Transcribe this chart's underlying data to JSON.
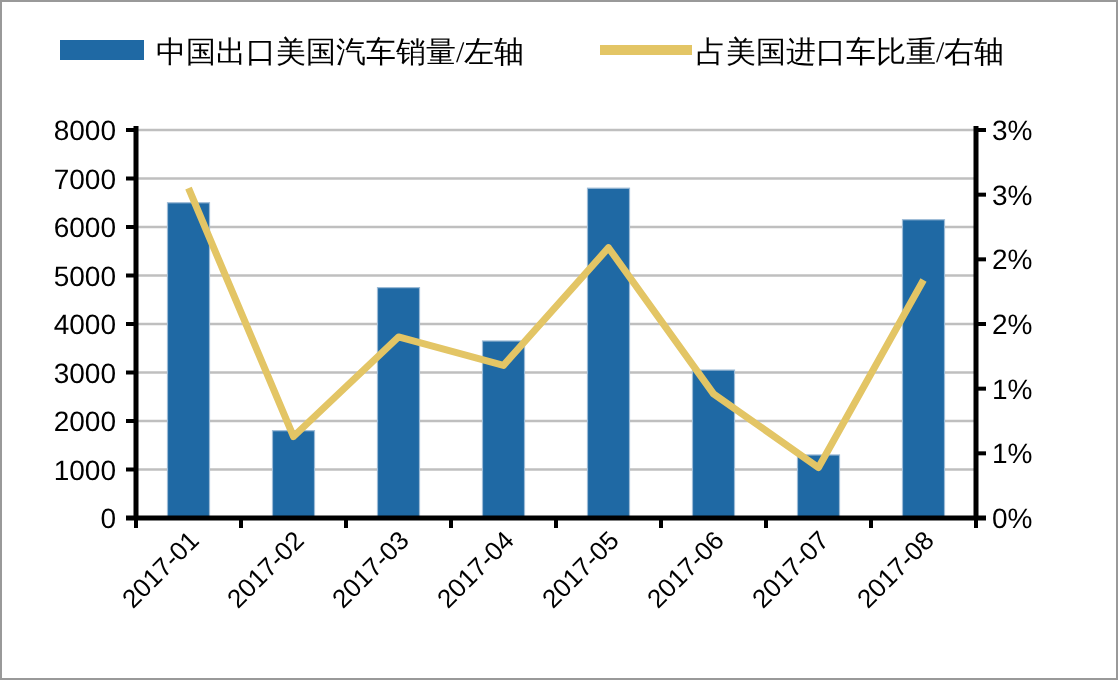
{
  "chart_data": {
    "type": "bar",
    "categories": [
      "2017-01",
      "2017-02",
      "2017-03",
      "2017-04",
      "2017-05",
      "2017-06",
      "2017-07",
      "2017-08"
    ],
    "series": [
      {
        "name": "中国出口美国汽车销量/左轴",
        "color": "#1f69a4",
        "values": [
          6500,
          1800,
          4750,
          3650,
          6800,
          3050,
          1300,
          6150
        ]
      },
      {
        "name": "占美国进口车比重/右轴",
        "color": "#e3c565",
        "type": "line",
        "axis": "y2",
        "values": [
          2.55,
          0.63,
          1.4,
          1.18,
          2.09,
          0.96,
          0.39,
          1.84
        ]
      }
    ],
    "ylim": [
      0,
      8000
    ],
    "yticks": [
      0,
      1000,
      2000,
      3000,
      4000,
      5000,
      6000,
      7000,
      8000
    ],
    "y2lim": [
      0,
      3
    ],
    "y2ticks": [
      {
        "value": 0,
        "label": "0%"
      },
      {
        "value": 0.5,
        "label": "1%"
      },
      {
        "value": 1,
        "label": "1%"
      },
      {
        "value": 1.5,
        "label": "2%"
      },
      {
        "value": 2,
        "label": "2%"
      },
      {
        "value": 2.5,
        "label": "3%"
      },
      {
        "value": 3,
        "label": "3%"
      }
    ],
    "grid": "y",
    "legend": "top",
    "marker": "none"
  }
}
